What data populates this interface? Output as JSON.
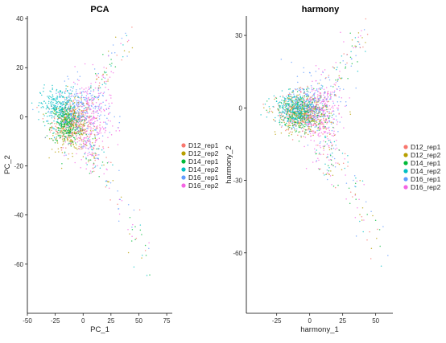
{
  "chart_data": [
    {
      "type": "scatter",
      "title": "PCA",
      "xlabel": "PC_1",
      "ylabel": "PC_2",
      "xlim": [
        -50,
        80
      ],
      "ylim": [
        -80,
        41
      ],
      "x_ticks": [
        -50,
        -25,
        0,
        25,
        50,
        75
      ],
      "y_ticks": [
        40,
        20,
        0,
        -20,
        -40,
        -60
      ],
      "grid": false,
      "legend_position": "right",
      "series": [
        {
          "name": "D12_rep1",
          "color": "#F8766D"
        },
        {
          "name": "D12_rep2",
          "color": "#B79F00"
        },
        {
          "name": "D14_rep1",
          "color": "#00BA38"
        },
        {
          "name": "D14_rep2",
          "color": "#00BFC4"
        },
        {
          "name": "D16_rep1",
          "color": "#619CFF"
        },
        {
          "name": "D16_rep2",
          "color": "#F564E3"
        }
      ],
      "clusters": [
        {
          "series": "D12_rep1",
          "cx": -10,
          "cy": -2,
          "sx": 9,
          "sy": 5
        },
        {
          "series": "D12_rep2",
          "cx": -10,
          "cy": -4,
          "sx": 9,
          "sy": 5
        },
        {
          "series": "D14_rep1",
          "cx": -15,
          "cy": -3,
          "sx": 7,
          "sy": 4
        },
        {
          "series": "D14_rep2",
          "cx": -22,
          "cy": 4,
          "sx": 8,
          "sy": 4
        },
        {
          "series": "D16_rep1",
          "cx": 0,
          "cy": 2,
          "sx": 12,
          "sy": 6
        },
        {
          "series": "D16_rep2",
          "cx": 6,
          "cy": -2,
          "sx": 9,
          "sy": 9
        }
      ],
      "arms": [
        {
          "x0": 5,
          "y0": 5,
          "x1": 42,
          "y1": 34,
          "spread": 3
        },
        {
          "x0": 5,
          "y0": -8,
          "x1": 10,
          "y1": -20,
          "spread": 4
        },
        {
          "x0": 10,
          "y0": -10,
          "x1": 60,
          "y1": -60,
          "spread": 4
        }
      ]
    },
    {
      "type": "scatter",
      "title": "harmony",
      "xlabel": "harmony_1",
      "ylabel": "harmony_2",
      "xlim": [
        -48,
        63
      ],
      "ylim": [
        -85,
        38
      ],
      "x_ticks": [
        -25,
        0,
        25,
        50
      ],
      "y_ticks": [
        30,
        0,
        -30,
        -60
      ],
      "grid": false,
      "legend_position": "right",
      "series": [
        {
          "name": "D12_rep1",
          "color": "#F8766D"
        },
        {
          "name": "D12_rep2",
          "color": "#B79F00"
        },
        {
          "name": "D14_rep1",
          "color": "#00BA38"
        },
        {
          "name": "D14_rep2",
          "color": "#00BFC4"
        },
        {
          "name": "D16_rep1",
          "color": "#619CFF"
        },
        {
          "name": "D16_rep2",
          "color": "#F564E3"
        }
      ],
      "clusters": [
        {
          "series": "D12_rep1",
          "cx": -5,
          "cy": -2,
          "sx": 10,
          "sy": 4
        },
        {
          "series": "D12_rep2",
          "cx": -5,
          "cy": -3,
          "sx": 10,
          "sy": 4
        },
        {
          "series": "D14_rep1",
          "cx": -5,
          "cy": -2,
          "sx": 9,
          "sy": 4
        },
        {
          "series": "D14_rep2",
          "cx": -12,
          "cy": 0,
          "sx": 8,
          "sy": 3
        },
        {
          "series": "D16_rep1",
          "cx": 2,
          "cy": 1,
          "sx": 10,
          "sy": 6
        },
        {
          "series": "D16_rep2",
          "cx": 8,
          "cy": -3,
          "sx": 8,
          "sy": 8
        }
      ],
      "arms": [
        {
          "x0": 10,
          "y0": 5,
          "x1": 42,
          "y1": 30,
          "spread": 3
        },
        {
          "x0": 10,
          "y0": -10,
          "x1": 15,
          "y1": -28,
          "spread": 4
        },
        {
          "x0": 12,
          "y0": -10,
          "x1": 55,
          "y1": -60,
          "spread": 4
        }
      ]
    }
  ]
}
